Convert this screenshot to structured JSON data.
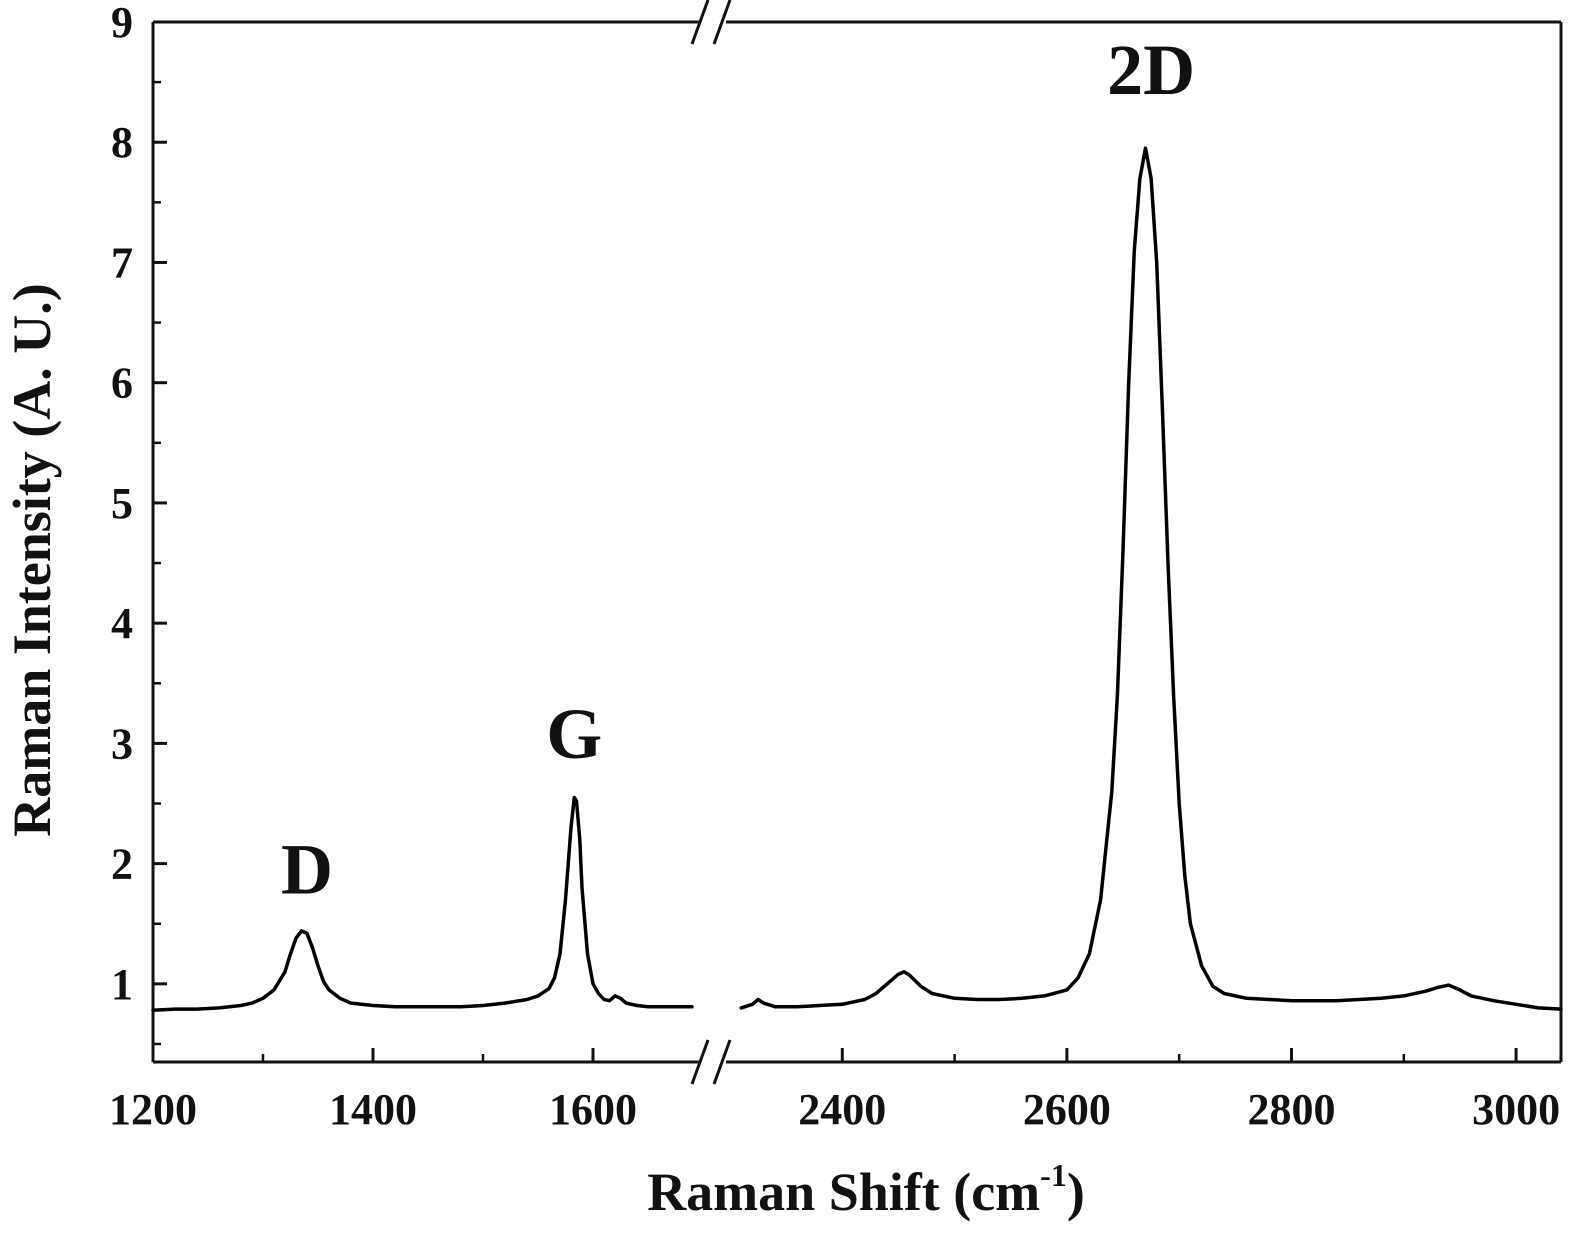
{
  "chart_data": {
    "type": "line",
    "title": "",
    "xlabel": "Raman Shift (cm",
    "xlabel_superscript": "-1",
    "xlabel_suffix": ")",
    "ylabel": "Raman Intensity (A. U.)",
    "ylim": [
      0.35,
      9
    ],
    "y_ticks": [
      "1",
      "2",
      "3",
      "4",
      "5",
      "6",
      "7",
      "8",
      "9"
    ],
    "x_axis": {
      "broken": true,
      "break_between": [
        1700,
        2300
      ],
      "segment1_range": [
        1200,
        1700
      ],
      "segment2_range": [
        2300,
        3040
      ],
      "tick_labels": [
        "1200",
        "1400",
        "1600",
        "2400",
        "2600",
        "2800",
        "3000"
      ]
    },
    "grid": false,
    "line_color": "#000000",
    "series": [
      {
        "segment": 1,
        "x": [
          1200,
          1220,
          1240,
          1260,
          1280,
          1290,
          1300,
          1310,
          1320,
          1325,
          1330,
          1335,
          1340,
          1345,
          1350,
          1355,
          1360,
          1370,
          1380,
          1400,
          1420,
          1440,
          1460,
          1480,
          1500,
          1520,
          1540,
          1550,
          1560,
          1565,
          1570,
          1575,
          1580,
          1583,
          1585,
          1588,
          1590,
          1595,
          1600,
          1605,
          1610,
          1615,
          1620,
          1625,
          1630,
          1640,
          1650,
          1660,
          1670,
          1680,
          1690
        ],
        "y": [
          0.78,
          0.79,
          0.79,
          0.8,
          0.82,
          0.84,
          0.88,
          0.95,
          1.1,
          1.25,
          1.38,
          1.44,
          1.42,
          1.3,
          1.15,
          1.02,
          0.95,
          0.88,
          0.84,
          0.82,
          0.81,
          0.81,
          0.81,
          0.81,
          0.82,
          0.84,
          0.87,
          0.9,
          0.96,
          1.05,
          1.25,
          1.7,
          2.3,
          2.55,
          2.52,
          2.2,
          1.8,
          1.25,
          1.0,
          0.92,
          0.87,
          0.86,
          0.9,
          0.88,
          0.84,
          0.82,
          0.81,
          0.81,
          0.81,
          0.81,
          0.81
        ]
      },
      {
        "segment": 2,
        "x": [
          2310,
          2320,
          2325,
          2330,
          2340,
          2360,
          2380,
          2400,
          2420,
          2430,
          2440,
          2450,
          2455,
          2460,
          2470,
          2480,
          2500,
          2520,
          2540,
          2560,
          2580,
          2600,
          2610,
          2620,
          2630,
          2640,
          2645,
          2650,
          2655,
          2660,
          2665,
          2670,
          2675,
          2680,
          2685,
          2690,
          2695,
          2700,
          2705,
          2710,
          2720,
          2730,
          2740,
          2760,
          2780,
          2800,
          2820,
          2840,
          2860,
          2880,
          2900,
          2920,
          2930,
          2940,
          2950,
          2960,
          2980,
          3000,
          3020,
          3040
        ],
        "y": [
          0.8,
          0.83,
          0.87,
          0.84,
          0.81,
          0.81,
          0.82,
          0.83,
          0.87,
          0.92,
          1.0,
          1.08,
          1.1,
          1.07,
          0.98,
          0.92,
          0.88,
          0.87,
          0.87,
          0.88,
          0.9,
          0.95,
          1.05,
          1.25,
          1.7,
          2.6,
          3.4,
          4.6,
          6.0,
          7.1,
          7.7,
          7.95,
          7.7,
          7.0,
          5.8,
          4.5,
          3.4,
          2.5,
          1.9,
          1.5,
          1.15,
          0.98,
          0.92,
          0.88,
          0.87,
          0.86,
          0.86,
          0.86,
          0.87,
          0.88,
          0.9,
          0.94,
          0.97,
          0.99,
          0.95,
          0.9,
          0.86,
          0.83,
          0.8,
          0.79
        ]
      }
    ],
    "annotations": [
      {
        "text": "D",
        "x": 1340,
        "y": 1.75
      },
      {
        "text": "G",
        "x": 1583,
        "y": 2.88
      },
      {
        "text": "2D",
        "x": 2675,
        "y": 8.4
      }
    ]
  }
}
